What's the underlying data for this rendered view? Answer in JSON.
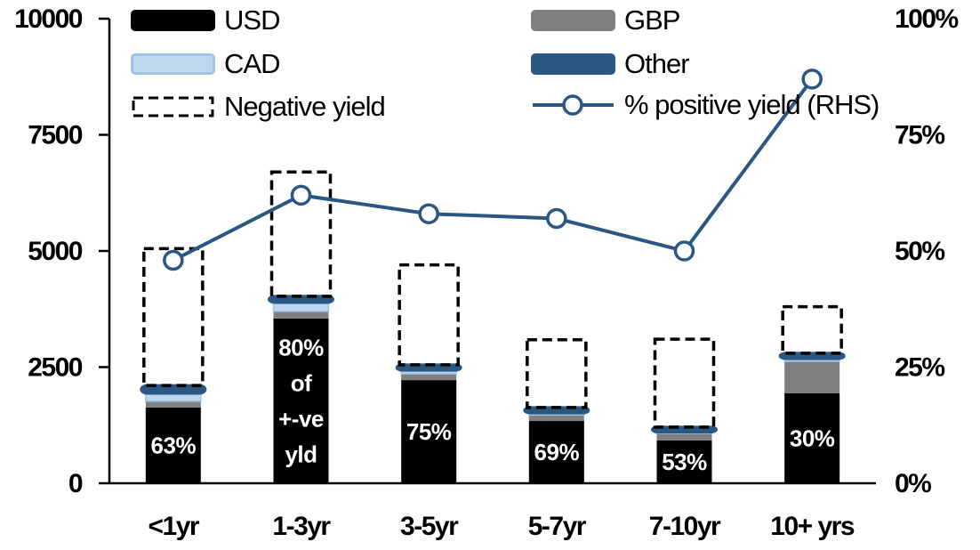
{
  "colors": {
    "usd": "#000000",
    "gbp": "#7F7F7F",
    "cad_fill": "#BDD7EE",
    "cad_border": "#9DC3E6",
    "dark_blue": "#2A5783",
    "negative_yield_outline": "#000000",
    "axis": "#000000",
    "bar_label_text": "#FFFFFF",
    "background": "#FFFFFF"
  },
  "legend": {
    "items": [
      {
        "label": "USD",
        "swatch": "solid-black"
      },
      {
        "label": "GBP",
        "swatch": "solid-gray"
      },
      {
        "label": "CAD",
        "swatch": "solid-lightblue-bordered"
      },
      {
        "label": "Other",
        "swatch": "solid-darkblue"
      },
      {
        "label": "Negative yield",
        "swatch": "dashed-outline"
      },
      {
        "label": "% positive yield (RHS)",
        "swatch": "line-with-open-circle-marker"
      }
    ]
  },
  "chart_data": {
    "type": "bar",
    "subtype": "stacked-bars-with-dashed-outline-and-line-overlay",
    "grid": false,
    "legend_position": "top",
    "categories": [
      "<1yr",
      "1-3yr",
      "3-5yr",
      "5-7yr",
      "7-10yr",
      "10+ yrs"
    ],
    "series": [
      {
        "name": "USD",
        "color": "#000000",
        "values": [
          1630,
          3545,
          2220,
          1340,
          920,
          1935
        ]
      },
      {
        "name": "GBP",
        "color": "#7F7F7F",
        "values": [
          135,
          155,
          135,
          130,
          150,
          690
        ]
      },
      {
        "name": "CAD",
        "color": "#BDD7EE",
        "border": "#9DC3E6",
        "values": [
          170,
          190,
          75,
          40,
          30,
          55
        ]
      },
      {
        "name": "Other",
        "color": "#2A5783",
        "values": [
          170,
          135,
          120,
          120,
          110,
          120
        ]
      }
    ],
    "stack_totals": [
      2105,
      4025,
      2550,
      1630,
      1210,
      2800
    ],
    "negative_yield_box_top": [
      5050,
      6700,
      4700,
      3090,
      3100,
      3800
    ],
    "line_series": {
      "name": "% positive yield (RHS)",
      "axis": "right",
      "color": "#2A5783",
      "marker": "open-circle",
      "values_pct": [
        48,
        62,
        58,
        57,
        50,
        87
      ]
    },
    "bar_labels": [
      "63%",
      "80%\nof\n+-ve\nyld",
      "75%",
      "69%",
      "53%",
      "30%"
    ],
    "left_axis": {
      "min": 0,
      "max": 10000,
      "tick_values": [
        0,
        2500,
        5000,
        7500,
        10000
      ],
      "tick_labels": [
        "0",
        "2500",
        "5000",
        "7500",
        "10000"
      ]
    },
    "right_axis": {
      "min": 0,
      "max": 100,
      "tick_values": [
        0,
        25,
        50,
        75,
        100
      ],
      "tick_labels": [
        "0%",
        "25%",
        "50%",
        "75%",
        "100%"
      ]
    }
  }
}
